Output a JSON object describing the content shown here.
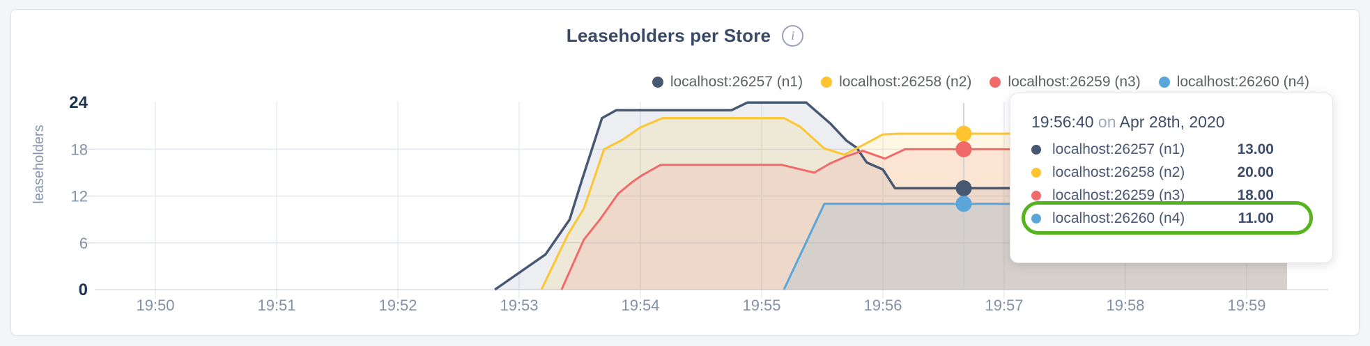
{
  "header": {
    "title": "Leaseholders per Store",
    "info_glyph": "i"
  },
  "legend": {
    "items": [
      {
        "label": "localhost:26257 (n1)",
        "color": "#475872"
      },
      {
        "label": "localhost:26258 (n2)",
        "color": "#ffc531"
      },
      {
        "label": "localhost:26259 (n3)",
        "color": "#f16a6a"
      },
      {
        "label": "localhost:26260 (n4)",
        "color": "#5aa6d8"
      }
    ]
  },
  "axes": {
    "ylabel": "leaseholders",
    "y_ticks": [
      0,
      6,
      12,
      18,
      24
    ],
    "x_ticks": [
      "19:50",
      "19:51",
      "19:52",
      "19:53",
      "19:54",
      "19:55",
      "19:56",
      "19:57",
      "19:58",
      "19:59"
    ]
  },
  "chart_data": {
    "type": "area",
    "title": "Leaseholders per Store",
    "xlabel": "",
    "ylabel": "leaseholders",
    "ylim": [
      0,
      24
    ],
    "grid": true,
    "legend_position": "top",
    "x_ticks": [
      "19:50",
      "19:51",
      "19:52",
      "19:53",
      "19:54",
      "19:55",
      "19:56",
      "19:57",
      "19:58",
      "19:59"
    ],
    "y_ticks": [
      0,
      6,
      12,
      18,
      24
    ],
    "t_unit": "seconds after 19:50:00",
    "series": [
      {
        "name": "localhost:26257 (n1)",
        "color": "#475872",
        "fill_opacity": 0.1,
        "points": [
          [
            168,
            0
          ],
          [
            193,
            4.5
          ],
          [
            205,
            9
          ],
          [
            211,
            14
          ],
          [
            221,
            22
          ],
          [
            228,
            23
          ],
          [
            285,
            23
          ],
          [
            293,
            24
          ],
          [
            322,
            24
          ],
          [
            334,
            21.3
          ],
          [
            342,
            19.1
          ],
          [
            347,
            18.2
          ],
          [
            352,
            16.3
          ],
          [
            360,
            15.4
          ],
          [
            366,
            13
          ],
          [
            400,
            13
          ],
          [
            560,
            13
          ]
        ]
      },
      {
        "name": "localhost:26258 (n2)",
        "color": "#ffc531",
        "fill_opacity": 0.13,
        "points": [
          [
            191,
            0
          ],
          [
            204,
            7
          ],
          [
            212,
            10.4
          ],
          [
            222,
            18
          ],
          [
            231,
            19.2
          ],
          [
            240,
            20.8
          ],
          [
            251,
            22
          ],
          [
            311,
            22
          ],
          [
            319,
            20.9
          ],
          [
            331,
            18.1
          ],
          [
            341,
            17.3
          ],
          [
            352,
            18.8
          ],
          [
            360,
            19.9
          ],
          [
            368,
            20
          ],
          [
            400,
            20
          ],
          [
            560,
            20
          ]
        ]
      },
      {
        "name": "localhost:26259 (n3)",
        "color": "#f16a6a",
        "fill_opacity": 0.13,
        "points": [
          [
            201,
            0
          ],
          [
            212,
            6.4
          ],
          [
            220,
            9
          ],
          [
            229,
            12.3
          ],
          [
            236,
            13.8
          ],
          [
            241,
            14.7
          ],
          [
            250,
            16
          ],
          [
            310,
            16
          ],
          [
            326,
            15
          ],
          [
            334,
            16.2
          ],
          [
            342,
            17.1
          ],
          [
            350,
            17.8
          ],
          [
            361,
            16.8
          ],
          [
            371,
            18
          ],
          [
            400,
            18
          ],
          [
            560,
            18
          ]
        ]
      },
      {
        "name": "localhost:26260 (n4)",
        "color": "#5aa6d8",
        "fill_opacity": 0.16,
        "points": [
          [
            311,
            0
          ],
          [
            331,
            11
          ],
          [
            400,
            11
          ],
          [
            560,
            11
          ]
        ]
      }
    ],
    "hover_marker": {
      "t": 400,
      "time": "19:56:40",
      "values": [
        13,
        20,
        18,
        11
      ]
    }
  },
  "tooltip": {
    "time": "19:56:40",
    "conjunction": " on ",
    "date": "Apr 28th, 2020",
    "rows": [
      {
        "label": "localhost:26257 (n1)",
        "value": "13.00",
        "color": "#475872"
      },
      {
        "label": "localhost:26258 (n2)",
        "value": "20.00",
        "color": "#ffc531"
      },
      {
        "label": "localhost:26259 (n3)",
        "value": "18.00",
        "color": "#f16a6a"
      },
      {
        "label": "localhost:26260 (n4)",
        "value": "11.00",
        "color": "#5aa6d8"
      }
    ],
    "highlight_row_index": 3,
    "highlight_color": "#57b31f"
  }
}
